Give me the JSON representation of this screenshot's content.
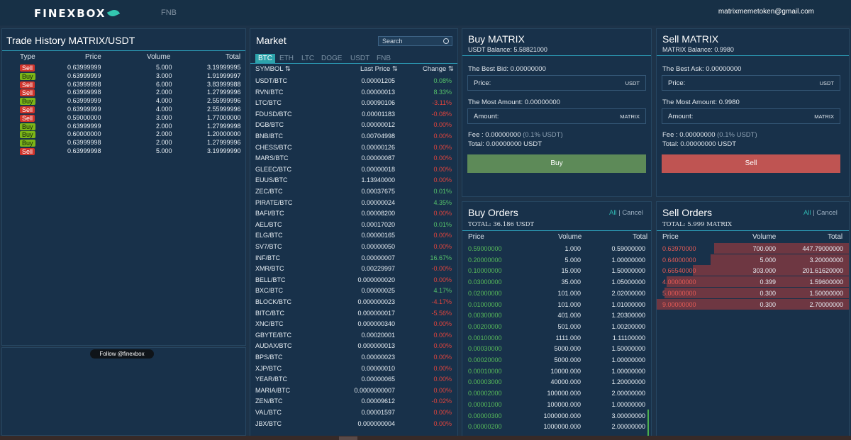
{
  "header": {
    "logo": "FINEXBOX",
    "nav_item": "FNB",
    "email": "matrixmemetoken@gmail.com"
  },
  "trade_history": {
    "title": "Trade History MATRIX/USDT",
    "columns": [
      "Type",
      "Price",
      "Volume",
      "Total"
    ],
    "rows": [
      [
        "Sell",
        "0.63999999",
        "5.000",
        "3.19999995"
      ],
      [
        "Buy",
        "0.63999999",
        "3.000",
        "1.91999997"
      ],
      [
        "Sell",
        "0.63999998",
        "6.000",
        "3.83999988"
      ],
      [
        "Sell",
        "0.63999998",
        "2.000",
        "1.27999996"
      ],
      [
        "Buy",
        "0.63999999",
        "4.000",
        "2.55999996"
      ],
      [
        "Sell",
        "0.63999999",
        "4.000",
        "2.55999996"
      ],
      [
        "Sell",
        "0.59000000",
        "3.000",
        "1.77000000"
      ],
      [
        "Buy",
        "0.63999999",
        "2.000",
        "1.27999998"
      ],
      [
        "Buy",
        "0.60000000",
        "2.000",
        "1.20000000"
      ],
      [
        "Buy",
        "0.63999998",
        "2.000",
        "1.27999996"
      ],
      [
        "Sell",
        "0.63999998",
        "5.000",
        "3.19999990"
      ]
    ],
    "follow_button": "Follow @finexbox"
  },
  "market": {
    "title": "Market",
    "search_placeholder": "Search",
    "tabs": [
      "BTC",
      "ETH",
      "LTC",
      "DOGE",
      "USDT",
      "FNB"
    ],
    "columns": [
      "SYMBOL ⇅",
      "Last Price ⇅",
      "Change ⇅"
    ],
    "rows": [
      [
        "USDT/BTC",
        "0.00001205",
        "0.08%"
      ],
      [
        "RVN/BTC",
        "0.00000013",
        "8.33%"
      ],
      [
        "LTC/BTC",
        "0.00090106",
        "-3.11%"
      ],
      [
        "FDUSD/BTC",
        "0.00001183",
        "-0.08%"
      ],
      [
        "DGB/BTC",
        "0.00000012",
        "0.00%"
      ],
      [
        "BNB/BTC",
        "0.00704998",
        "0.00%"
      ],
      [
        "CHESS/BTC",
        "0.00000126",
        "0.00%"
      ],
      [
        "MARS/BTC",
        "0.00000087",
        "0.00%"
      ],
      [
        "GLEEC/BTC",
        "0.00000018",
        "0.00%"
      ],
      [
        "EUUS/BTC",
        "1.13940000",
        "0.00%"
      ],
      [
        "ZEC/BTC",
        "0.00037675",
        "0.01%"
      ],
      [
        "PIRATE/BTC",
        "0.00000024",
        "4.35%"
      ],
      [
        "BAFI/BTC",
        "0.00008200",
        "0.00%"
      ],
      [
        "AEL/BTC",
        "0.00017020",
        "0.01%"
      ],
      [
        "ELG/BTC",
        "0.00000165",
        "0.00%"
      ],
      [
        "SV7/BTC",
        "0.00000050",
        "0.00%"
      ],
      [
        "INF/BTC",
        "0.00000007",
        "16.67%"
      ],
      [
        "XMR/BTC",
        "0.00229997",
        "-0.00%"
      ],
      [
        "BELL/BTC",
        "0.000000020",
        "0.00%"
      ],
      [
        "BXC/BTC",
        "0.00000025",
        "4.17%"
      ],
      [
        "BLOCK/BTC",
        "0.000000023",
        "-4.17%"
      ],
      [
        "BITC/BTC",
        "0.000000017",
        "-5.56%"
      ],
      [
        "XNC/BTC",
        "0.000000340",
        "0.00%"
      ],
      [
        "GBYTE/BTC",
        "0.00020001",
        "0.00%"
      ],
      [
        "AUDAX/BTC",
        "0.000000013",
        "0.00%"
      ],
      [
        "BPS/BTC",
        "0.00000023",
        "0.00%"
      ],
      [
        "XJP/BTC",
        "0.00000010",
        "0.00%"
      ],
      [
        "YEAR/BTC",
        "0.00000065",
        "0.00%"
      ],
      [
        "MARIA/BTC",
        "0.0000000007",
        "0.00%"
      ],
      [
        "ZEN/BTC",
        "0.00009612",
        "-0.02%"
      ],
      [
        "VAL/BTC",
        "0.00001597",
        "0.00%"
      ],
      [
        "JBX/BTC",
        "0.000000004",
        "0.00%"
      ]
    ]
  },
  "buy_form": {
    "title": "Buy MATRIX",
    "balance": "USDT Balance: 5.58821000",
    "best": "The Best Bid: 0.00000000",
    "price_label": "Price:",
    "price_unit": "USDT",
    "most": "The Most Amount: 0.00000000",
    "amount_label": "Amount:",
    "amount_unit": "MATRIX",
    "fee": "Fee : 0.00000000",
    "fee_pct": "(0.1% USDT)",
    "total": "Total: 0.00000000 USDT",
    "button": "Buy"
  },
  "sell_form": {
    "title": "Sell MATRIX",
    "balance": "MATRIX Balance: 0.9980",
    "best": "The Best Ask: 0.00000000",
    "price_label": "Price:",
    "price_unit": "USDT",
    "most": "The Most Amount: 0.9980",
    "amount_label": "Amount:",
    "amount_unit": "MATRIX",
    "fee": "Fee : 0.00000000",
    "fee_pct": "(0.1% USDT)",
    "total": "Total: 0.00000000 USDT",
    "button": "Sell"
  },
  "buy_orders": {
    "title": "Buy Orders",
    "all": "All",
    "sep": " | ",
    "cancel": "Cancel",
    "total": "TOTAL:  36.186 USDT",
    "columns": [
      "Price",
      "Volume",
      "Total"
    ],
    "rows": [
      [
        "0.59000000",
        "1.000",
        "0.59000000"
      ],
      [
        "0.20000000",
        "5.000",
        "1.00000000"
      ],
      [
        "0.10000000",
        "15.000",
        "1.50000000"
      ],
      [
        "0.03000000",
        "35.000",
        "1.05000000"
      ],
      [
        "0.02000000",
        "101.000",
        "2.02000000"
      ],
      [
        "0.01000000",
        "101.000",
        "1.01000000"
      ],
      [
        "0.00300000",
        "401.000",
        "1.20300000"
      ],
      [
        "0.00200000",
        "501.000",
        "1.00200000"
      ],
      [
        "0.00100000",
        "1111.000",
        "1.11100000"
      ],
      [
        "0.00030000",
        "5000.000",
        "1.50000000"
      ],
      [
        "0.00020000",
        "5000.000",
        "1.00000000"
      ],
      [
        "0.00010000",
        "10000.000",
        "1.00000000"
      ],
      [
        "0.00003000",
        "40000.000",
        "1.20000000"
      ],
      [
        "0.00002000",
        "100000.000",
        "2.00000000"
      ],
      [
        "0.00001000",
        "100000.000",
        "1.00000000"
      ],
      [
        "0.00000300",
        "1000000.000",
        "3.00000000"
      ],
      [
        "0.00000200",
        "1000000.000",
        "2.00000000"
      ]
    ]
  },
  "sell_orders": {
    "title": "Sell Orders",
    "all": "All",
    "sep": " | ",
    "cancel": "Cancel",
    "total": "TOTAL:  5.999 MATRIX",
    "columns": [
      "Price",
      "Volume",
      "Total"
    ],
    "rows": [
      [
        "0.63970000",
        "700.000",
        "447.79000000"
      ],
      [
        "0.64000000",
        "5.000",
        "3.20000000"
      ],
      [
        "0.66540000",
        "303.000",
        "201.61620000"
      ],
      [
        "4.00000000",
        "0.399",
        "1.59600000"
      ],
      [
        "5.00000000",
        "0.300",
        "1.50000000"
      ],
      [
        "9.00000000",
        "0.300",
        "2.70000000"
      ]
    ],
    "depth_fraction": [
      0.7,
      0.72,
      0.81,
      0.95,
      0.96,
      1.0
    ]
  },
  "colors": {
    "accent": "#2da3ab",
    "buy": "#5d8a58",
    "sell": "#bf5452",
    "positive": "#54c06a",
    "negative": "#e0443d"
  }
}
